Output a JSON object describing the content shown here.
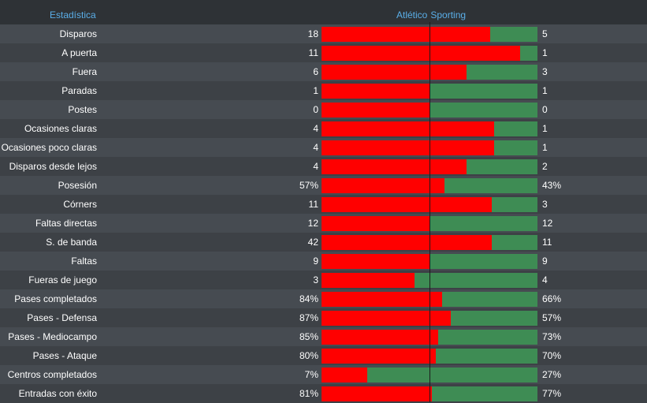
{
  "header": {
    "title": "Estadística",
    "home_team": "Atlético",
    "away_team": "Sporting"
  },
  "colors": {
    "home": "#ff0000",
    "away": "#3e8c54",
    "header_text": "#5aaee8"
  },
  "stats": [
    {
      "label": "Disparos",
      "home": "18",
      "away": "5",
      "home_share": 0.78
    },
    {
      "label": "A puerta",
      "home": "11",
      "away": "1",
      "home_share": 0.92
    },
    {
      "label": "Fuera",
      "home": "6",
      "away": "3",
      "home_share": 0.67
    },
    {
      "label": "Paradas",
      "home": "1",
      "away": "1",
      "home_share": 0.5
    },
    {
      "label": "Postes",
      "home": "0",
      "away": "0",
      "home_share": 0.5
    },
    {
      "label": "Ocasiones claras",
      "home": "4",
      "away": "1",
      "home_share": 0.8
    },
    {
      "label": "Ocasiones poco claras",
      "home": "4",
      "away": "1",
      "home_share": 0.8
    },
    {
      "label": "Disparos desde lejos",
      "home": "4",
      "away": "2",
      "home_share": 0.67
    },
    {
      "label": "Posesión",
      "home": "57%",
      "away": "43%",
      "home_share": 0.57
    },
    {
      "label": "Córners",
      "home": "11",
      "away": "3",
      "home_share": 0.79
    },
    {
      "label": "Faltas directas",
      "home": "12",
      "away": "12",
      "home_share": 0.5
    },
    {
      "label": "S. de banda",
      "home": "42",
      "away": "11",
      "home_share": 0.79
    },
    {
      "label": "Faltas",
      "home": "9",
      "away": "9",
      "home_share": 0.5
    },
    {
      "label": "Fueras de juego",
      "home": "3",
      "away": "4",
      "home_share": 0.43
    },
    {
      "label": "Pases completados",
      "home": "84%",
      "away": "66%",
      "home_share": 0.56
    },
    {
      "label": "Pases - Defensa",
      "home": "87%",
      "away": "57%",
      "home_share": 0.6
    },
    {
      "label": "Pases - Mediocampo",
      "home": "85%",
      "away": "73%",
      "home_share": 0.54
    },
    {
      "label": "Pases - Ataque",
      "home": "80%",
      "away": "70%",
      "home_share": 0.53
    },
    {
      "label": "Centros completados",
      "home": "7%",
      "away": "27%",
      "home_share": 0.21
    },
    {
      "label": "Entradas con éxito",
      "home": "81%",
      "away": "77%",
      "home_share": 0.51
    }
  ]
}
